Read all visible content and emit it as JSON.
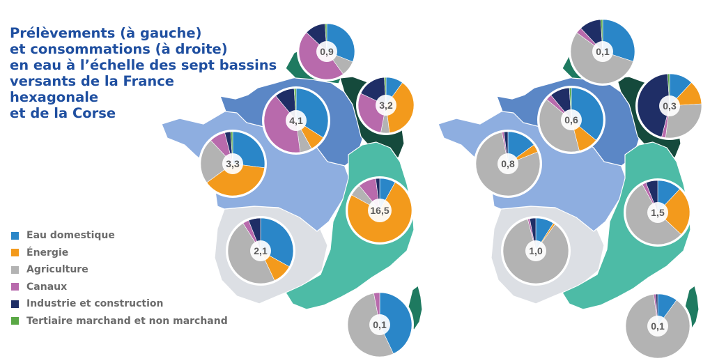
{
  "title": {
    "lines": [
      "Prélèvements (à gauche)",
      "et consommations (à droite)",
      "en eau à l’échelle des sept bassins",
      "versants de la France",
      "hexagonale",
      "et de la Corse"
    ]
  },
  "legend": [
    {
      "label": "Eau domestique",
      "color": "#2a86c8"
    },
    {
      "label": "Énergie",
      "color": "#f39a1c"
    },
    {
      "label": "Agriculture",
      "color": "#b3b3b3"
    },
    {
      "label": "Canaux",
      "color": "#b86aac"
    },
    {
      "label": "Industrie et construction",
      "color": "#1f2e66"
    },
    {
      "label": "Tertiaire marchand et non marchand",
      "color": "#5aa845"
    }
  ],
  "basin_colors": {
    "artois_picardie": "#1e7a60",
    "rhin_meuse": "#154a3c",
    "seine_normandie": "#5b87c6",
    "loire_bretagne": "#8eaee0",
    "adour_garonne": "#dcdfe4",
    "rhone_mediterranee": "#4dbba6",
    "corse": "#1e7a60"
  },
  "chart_data": [
    {
      "type": "pie",
      "title": "Prélèvements",
      "categories": [
        "Eau domestique",
        "Énergie",
        "Agriculture",
        "Canaux",
        "Industrie et construction",
        "Tertiaire marchand et non marchand"
      ],
      "pies": [
        {
          "basin": "Artois-Picardie",
          "label": "0,9",
          "values": [
            31,
            0,
            9,
            47,
            12,
            1
          ]
        },
        {
          "basin": "Rhin-Meuse",
          "label": "3,2",
          "values": [
            10,
            38,
            5,
            29,
            17,
            1
          ]
        },
        {
          "basin": "Seine-Normandie",
          "label": "4,1",
          "values": [
            34,
            8,
            6,
            41,
            10,
            1
          ]
        },
        {
          "basin": "Loire-Bretagne",
          "label": "3,3",
          "values": [
            27,
            38,
            23,
            8,
            3,
            1
          ]
        },
        {
          "basin": "Rhône-Méditerranée",
          "label": "16,5",
          "values": [
            8,
            75,
            6,
            9,
            2,
            0
          ]
        },
        {
          "basin": "Adour-Garonne",
          "label": "2,1",
          "values": [
            33,
            10,
            48,
            3,
            6,
            0
          ]
        },
        {
          "basin": "Corse",
          "label": "0,1",
          "values": [
            43,
            0,
            54,
            3,
            0,
            0
          ]
        }
      ]
    },
    {
      "type": "pie",
      "title": "Consommations",
      "categories": [
        "Eau domestique",
        "Énergie",
        "Agriculture",
        "Canaux",
        "Industrie et construction",
        "Tertiaire marchand et non marchand"
      ],
      "pies": [
        {
          "basin": "Artois-Picardie",
          "label": "0,1",
          "values": [
            30,
            0,
            55,
            3,
            11,
            1
          ]
        },
        {
          "basin": "Rhin-Meuse",
          "label": "0,3",
          "values": [
            12,
            12,
            28,
            2,
            45,
            1
          ]
        },
        {
          "basin": "Seine-Normandie",
          "label": "0,6",
          "values": [
            36,
            10,
            40,
            3,
            10,
            1
          ]
        },
        {
          "basin": "Loire-Bretagne",
          "label": "0,8",
          "values": [
            15,
            4,
            78,
            1,
            2,
            0
          ]
        },
        {
          "basin": "Rhône-Méditerranée",
          "label": "1,5",
          "values": [
            12,
            25,
            55,
            2,
            6,
            0
          ]
        },
        {
          "basin": "Adour-Garonne",
          "label": "1,0",
          "values": [
            9,
            1,
            86,
            1,
            3,
            0
          ]
        },
        {
          "basin": "Corse",
          "label": "0,1",
          "values": [
            10,
            0,
            88,
            1,
            1,
            0
          ]
        }
      ]
    }
  ]
}
